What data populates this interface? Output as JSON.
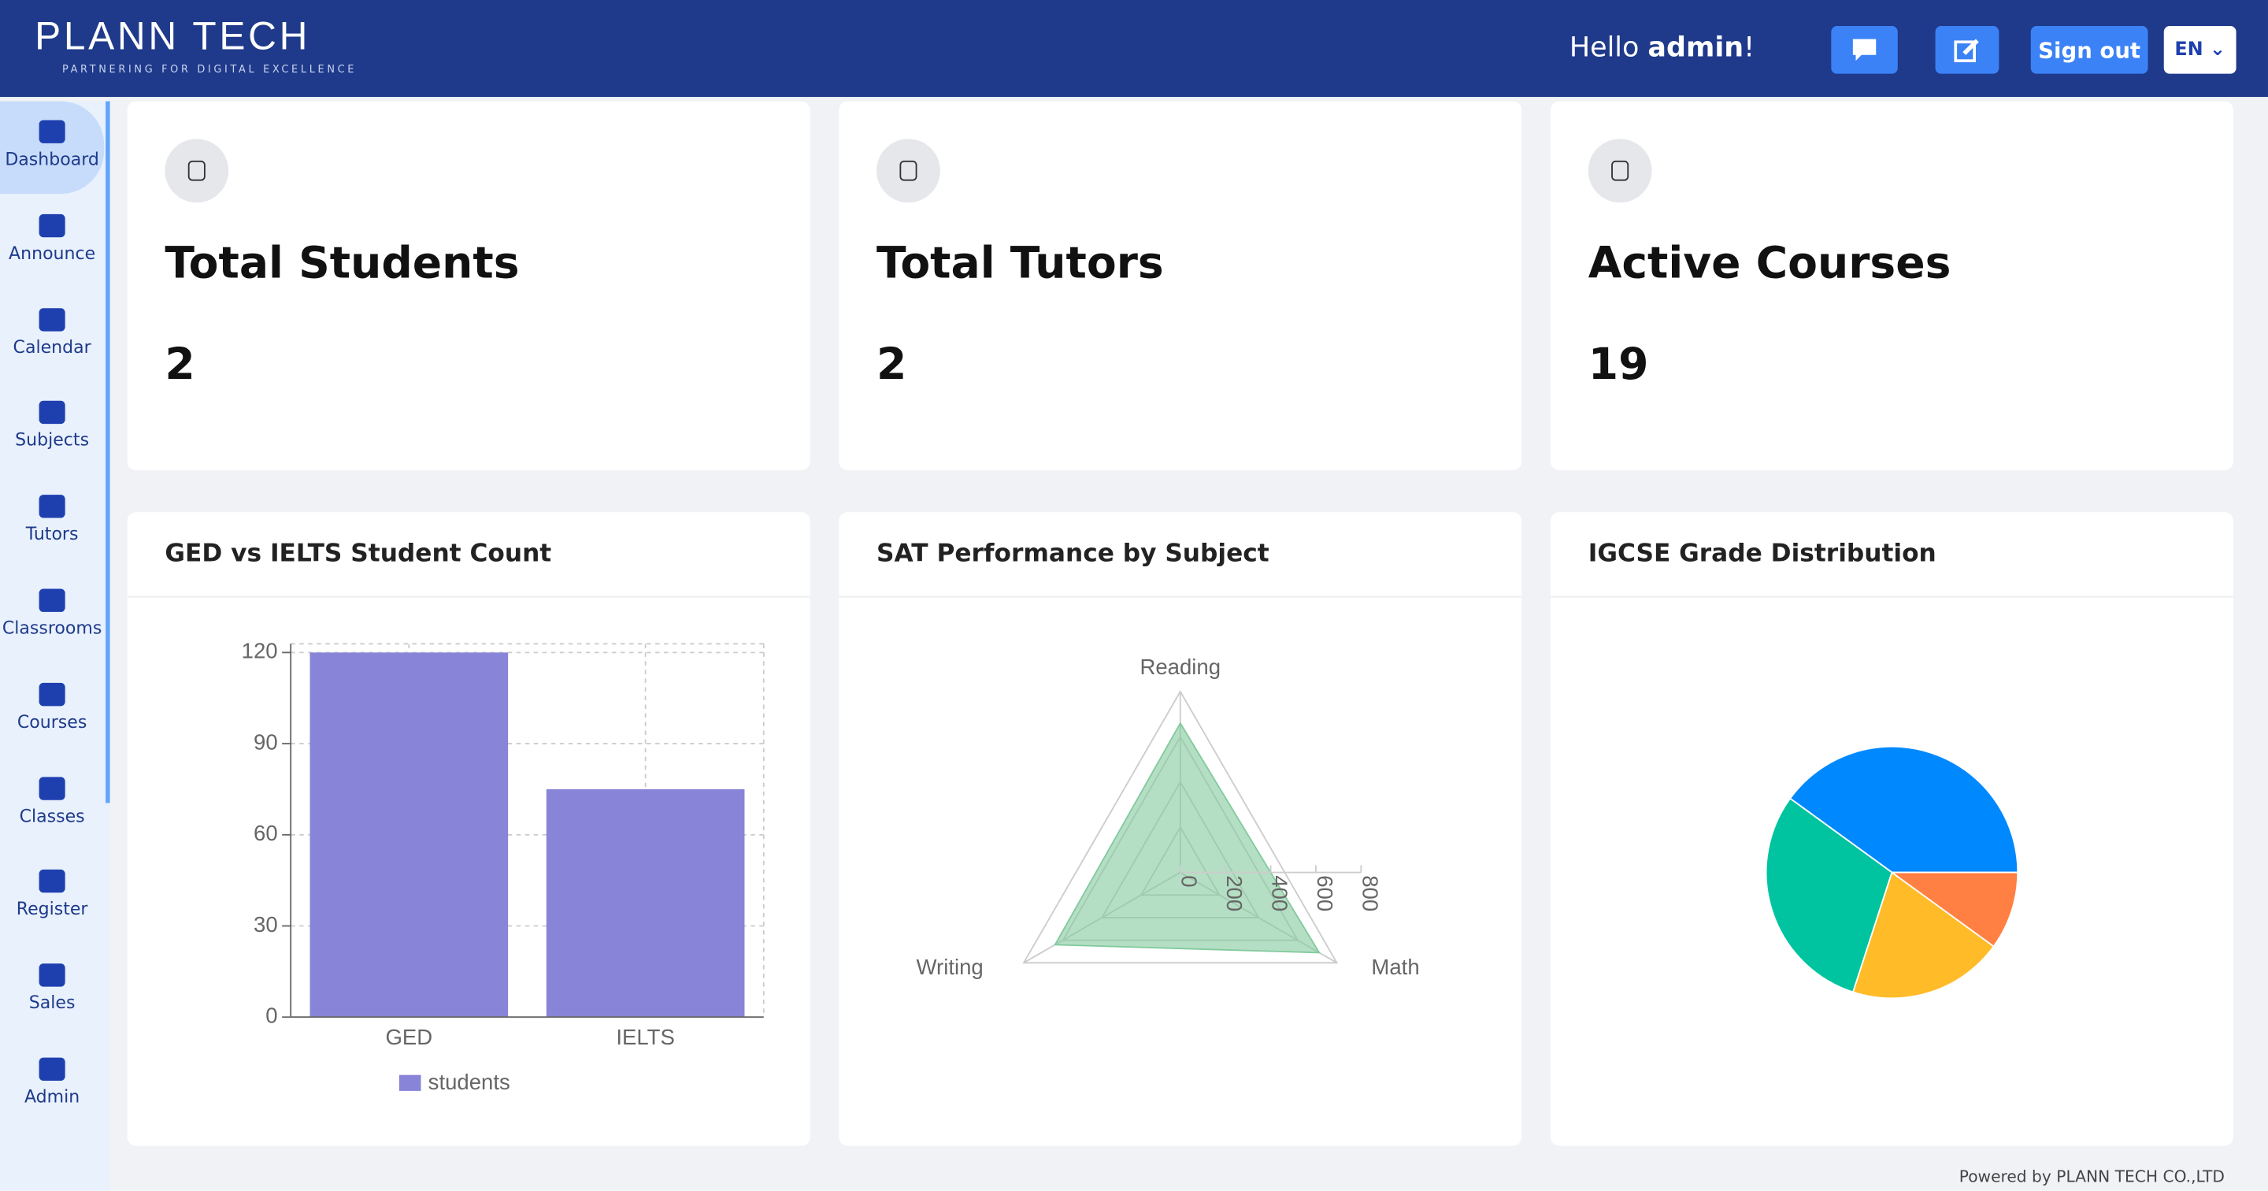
{
  "header": {
    "logo": "PLANN TECH",
    "tagline": "PARTNERING FOR DIGITAL EXCELLENCE",
    "greeting": "Hello",
    "user": "admin",
    "greeting_end": "!",
    "sign_out": "Sign out",
    "language": "EN"
  },
  "sidebar": [
    "Dashboard",
    "Announce",
    "Calendar",
    "Subjects",
    "Tutors",
    "Classrooms",
    "Courses",
    "Classes",
    "Register",
    "Sales",
    "Admin"
  ],
  "stats": [
    {
      "label": "Total Students",
      "value": "2"
    },
    {
      "label": "Total Tutors",
      "value": "2"
    },
    {
      "label": "Active Courses",
      "value": "19"
    }
  ],
  "chart_data": [
    {
      "type": "bar",
      "title": "GED vs IELTS Student Count",
      "categories": [
        "GED",
        "IELTS"
      ],
      "series": [
        {
          "name": "students",
          "color": "#8884d8",
          "values": [
            120,
            75
          ]
        }
      ],
      "ylim": [
        0,
        120
      ],
      "yticks": [
        0,
        30,
        60,
        90,
        120
      ],
      "grid": true
    },
    {
      "type": "radar",
      "title": "SAT Performance by Subject",
      "categories": [
        "Reading",
        "Math",
        "Writing"
      ],
      "values": [
        660,
        710,
        640
      ],
      "color": "#82ca9d",
      "rlim": [
        0,
        800
      ],
      "rticks": [
        0,
        200,
        400,
        600,
        800
      ]
    },
    {
      "type": "pie",
      "title": "IGCSE Grade Distribution",
      "values": [
        40,
        30,
        20,
        10
      ],
      "colors": [
        "#0088FE",
        "#00C49F",
        "#FFBB28",
        "#FF8042"
      ]
    }
  ],
  "footer": "Powered by PLANN TECH CO.,LTD"
}
